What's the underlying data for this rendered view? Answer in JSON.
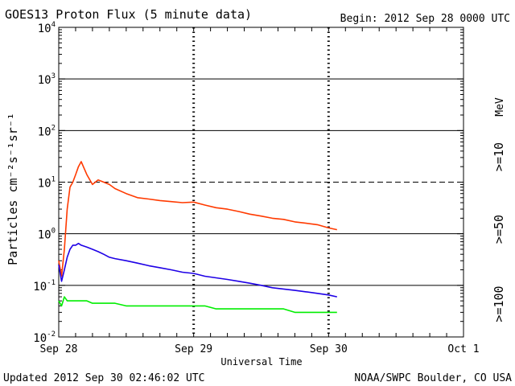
{
  "chart_data": {
    "type": "line",
    "title": "GOES13 Proton Flux (5 minute data)",
    "begin": "Begin: 2012 Sep 28 0000 UTC",
    "xlabel": "Universal Time",
    "ylabel": "Particles cm⁻²s⁻¹sr⁻¹",
    "yscale": "log",
    "ylim": [
      0.01,
      10000
    ],
    "xlim": [
      0,
      72
    ],
    "x_unit": "hours since 2012 Sep 28 0000 UTC",
    "y_tick_bases": [
      "10",
      "10",
      "10",
      "10",
      "10",
      "10",
      "10"
    ],
    "y_tick_exps": [
      "-2",
      "-1",
      "0",
      "1",
      "2",
      "3",
      "4"
    ],
    "y_tick_values": [
      0.01,
      0.1,
      1,
      10,
      100,
      1000,
      10000
    ],
    "x_ticks": [
      {
        "x": 0,
        "label": "Sep 28"
      },
      {
        "x": 24,
        "label": "Sep 29"
      },
      {
        "x": 48,
        "label": "Sep 30"
      },
      {
        "x": 72,
        "label": "Oct 1"
      }
    ],
    "alert_level_value": 10,
    "energy_unit": "MeV",
    "series": [
      {
        "name": ">=10",
        "color": "#ff3a00",
        "x": [
          0,
          0.5,
          1,
          1.5,
          2,
          2.5,
          3,
          3.5,
          4,
          5,
          6,
          7,
          8,
          9,
          10,
          12,
          14,
          16,
          18,
          20,
          22,
          24,
          26,
          28,
          30,
          32,
          34,
          36,
          38,
          40,
          42,
          44,
          46,
          48,
          49.5
        ],
        "y": [
          0.3,
          0.15,
          0.5,
          3,
          8,
          10,
          14,
          20,
          25,
          14,
          9,
          11,
          10,
          9,
          7.5,
          6,
          5,
          4.7,
          4.4,
          4.2,
          4,
          4.1,
          3.6,
          3.2,
          3,
          2.7,
          2.4,
          2.2,
          2,
          1.9,
          1.7,
          1.6,
          1.5,
          1.3,
          1.2
        ]
      },
      {
        "name": ">=50",
        "color": "#1e00e6",
        "x": [
          0,
          0.5,
          1,
          1.5,
          2,
          2.5,
          3,
          3.5,
          4,
          5,
          6,
          7,
          8,
          9,
          10,
          12,
          14,
          16,
          18,
          20,
          22,
          24,
          26,
          28,
          30,
          32,
          34,
          36,
          38,
          40,
          42,
          44,
          46,
          48,
          49.5
        ],
        "y": [
          0.25,
          0.12,
          0.2,
          0.35,
          0.5,
          0.6,
          0.6,
          0.65,
          0.6,
          0.55,
          0.5,
          0.45,
          0.4,
          0.35,
          0.33,
          0.3,
          0.27,
          0.24,
          0.22,
          0.2,
          0.18,
          0.17,
          0.15,
          0.14,
          0.13,
          0.12,
          0.11,
          0.1,
          0.09,
          0.085,
          0.08,
          0.075,
          0.07,
          0.065,
          0.06
        ]
      },
      {
        "name": ">=100",
        "color": "#00ee00",
        "x": [
          0,
          0.5,
          1,
          1.5,
          2,
          2.5,
          3,
          3.5,
          4,
          5,
          6,
          7,
          8,
          9,
          10,
          12,
          14,
          16,
          18,
          20,
          22,
          24,
          26,
          28,
          30,
          32,
          34,
          36,
          38,
          40,
          42,
          44,
          46,
          48,
          49.5
        ],
        "y": [
          0.05,
          0.04,
          0.06,
          0.05,
          0.05,
          0.05,
          0.05,
          0.05,
          0.05,
          0.05,
          0.045,
          0.045,
          0.045,
          0.045,
          0.045,
          0.04,
          0.04,
          0.04,
          0.04,
          0.04,
          0.04,
          0.04,
          0.04,
          0.035,
          0.035,
          0.035,
          0.035,
          0.035,
          0.035,
          0.035,
          0.03,
          0.03,
          0.03,
          0.03,
          0.03
        ]
      }
    ]
  },
  "footer": {
    "updated": "Updated 2012 Sep 30 02:46:02 UTC",
    "credit": "NOAA/SWPC Boulder, CO USA"
  }
}
